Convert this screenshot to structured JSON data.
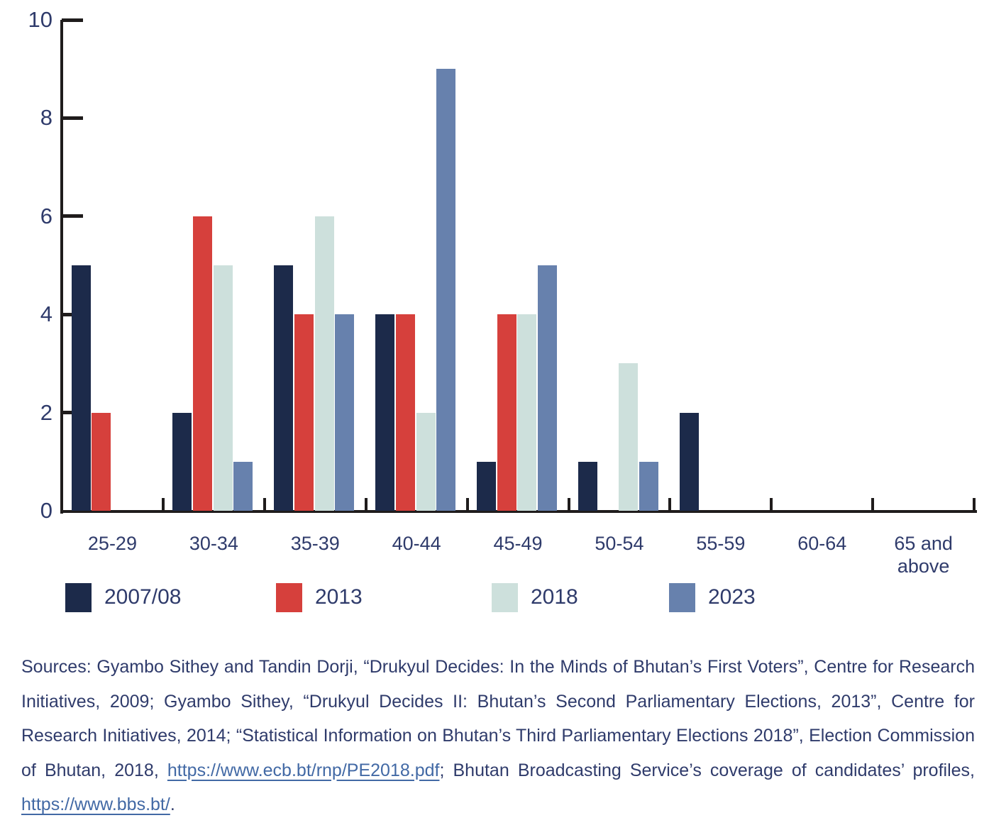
{
  "chart_data": {
    "type": "bar",
    "title": "",
    "xlabel": "",
    "ylabel": "",
    "ylim": [
      0,
      10
    ],
    "yticks": [
      0,
      2,
      4,
      6,
      8,
      10
    ],
    "grid": false,
    "legend_position": "bottom",
    "categories": [
      "25-29",
      "30-34",
      "35-39",
      "40-44",
      "45-49",
      "50-54",
      "55-59",
      "60-64",
      "65 and above"
    ],
    "series": [
      {
        "name": "2007/08",
        "color": "#1c2a4a",
        "values": [
          5,
          2,
          5,
          4,
          1,
          1,
          2,
          0,
          0
        ]
      },
      {
        "name": "2013",
        "color": "#d6403c",
        "values": [
          2,
          6,
          4,
          4,
          4,
          0,
          0,
          0,
          0
        ]
      },
      {
        "name": "2018",
        "color": "#cde0dc",
        "values": [
          0,
          5,
          6,
          2,
          4,
          3,
          0,
          0,
          0
        ]
      },
      {
        "name": "2023",
        "color": "#6781ad",
        "values": [
          0,
          1,
          4,
          9,
          5,
          1,
          0,
          0,
          0
        ]
      }
    ]
  },
  "sources": {
    "prefix": "Sources: Gyambo Sithey and Tandin Dorji, “Drukyul Decides: In the Minds of Bhutan’s First Voters”, Centre for Research Initiatives, 2009; Gyambo Sithey, “Drukyul Decides II: Bhutan’s Second Parliamentary Elections, 2013”, Centre for Research Initiatives, 2014; “Statistical Information on Bhutan’s Third Parliamentary Elections 2018”, Election Commission of Bhutan, 2018, ",
    "link1": "https://www.ecb.bt/rnp/PE2018.pdf",
    "middle": "; Bhutan Broadcasting Service’s coverage of candidates’ profiles, ",
    "link2": "https://www.bbs.bt/",
    "suffix": "."
  }
}
